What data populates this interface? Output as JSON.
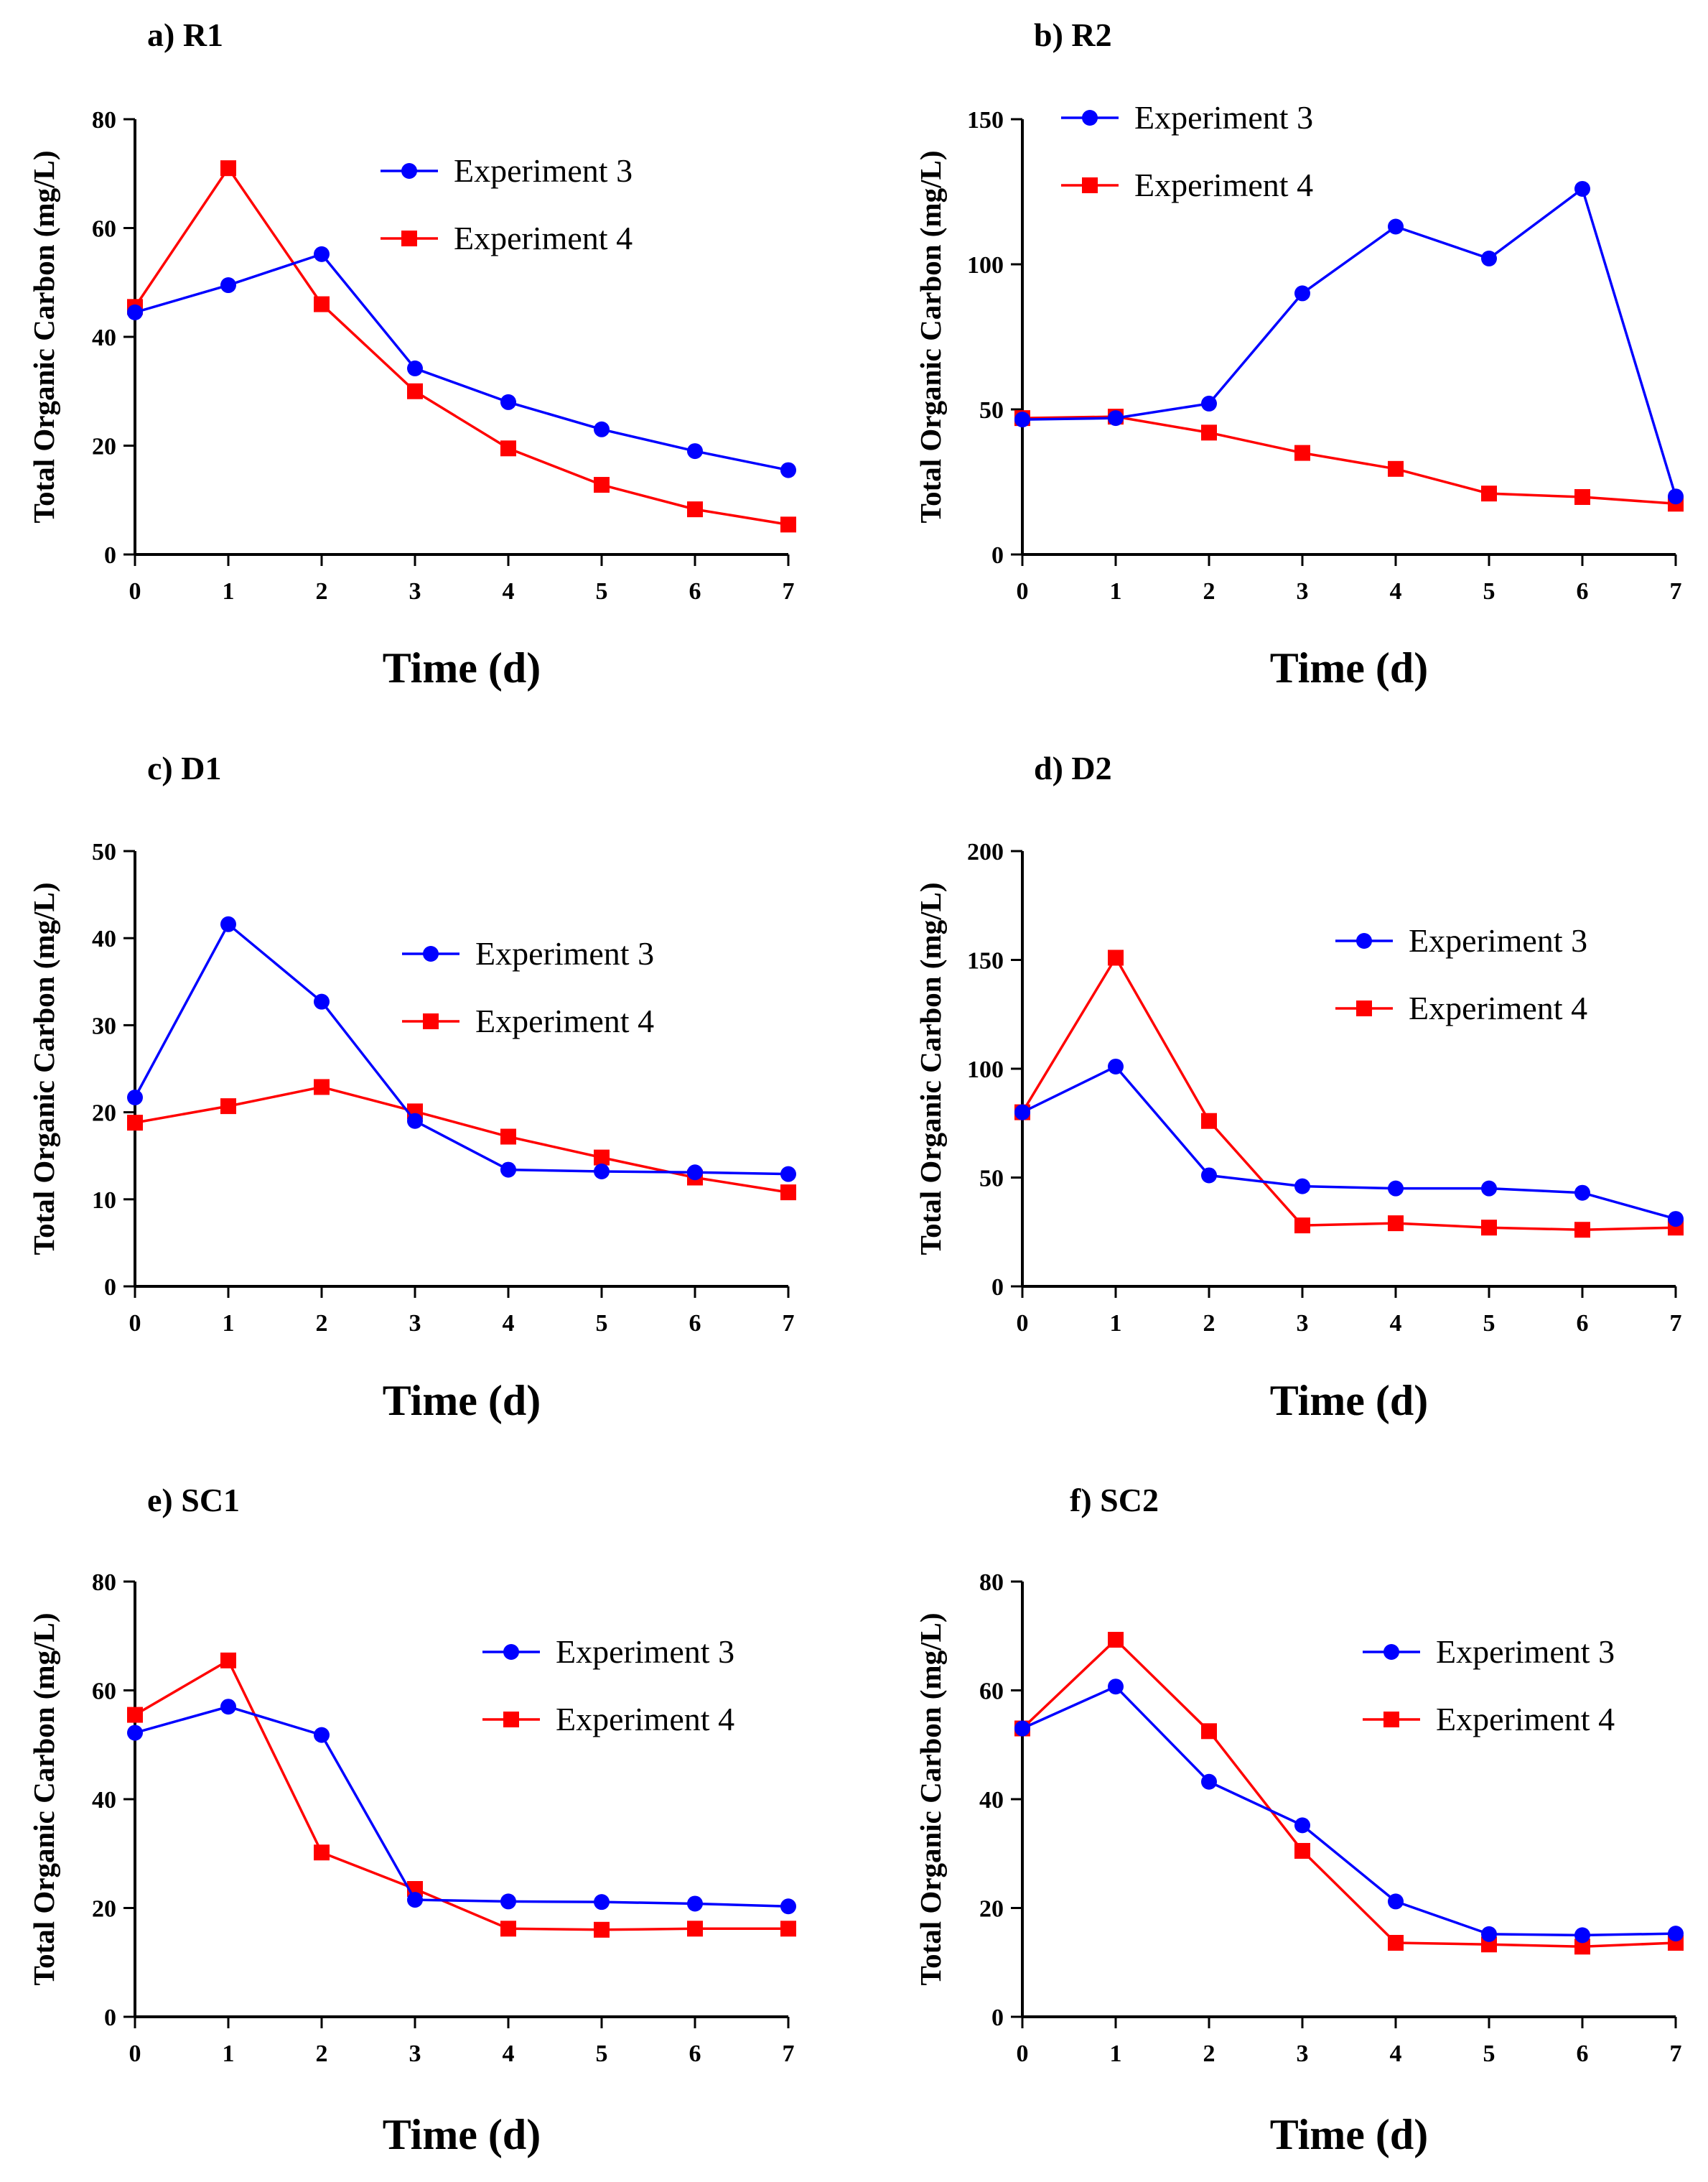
{
  "figure": {
    "colors": {
      "experiment_3": "#0000ff",
      "experiment_4": "#ff0000",
      "axis": "#000000"
    },
    "markers": {
      "experiment_3": "circle",
      "experiment_4": "square"
    }
  },
  "chart_data": [
    {
      "id": "R1",
      "type": "line",
      "title": "a) R1",
      "xlabel": "Time (d)",
      "ylabel": "Total Organic Carbon (mg/L)",
      "x": [
        0,
        1,
        2,
        3,
        4,
        5,
        6,
        7
      ],
      "xlim": [
        0,
        7
      ],
      "ylim": [
        0,
        80
      ],
      "yticks": [
        0,
        20,
        40,
        60,
        80
      ],
      "legend_position": "top-right",
      "series": [
        {
          "name": "Experiment 3",
          "values": [
            44.5,
            49.5,
            55.2,
            34.2,
            28.0,
            23.0,
            19.0,
            15.5
          ]
        },
        {
          "name": "Experiment 4",
          "values": [
            45.5,
            71.0,
            46.0,
            30.0,
            19.5,
            12.8,
            8.3,
            5.5
          ]
        }
      ]
    },
    {
      "id": "R2",
      "type": "line",
      "title": "b) R2",
      "xlabel": "Time (d)",
      "ylabel": "Total Organic Carbon (mg/L)",
      "x": [
        0,
        1,
        2,
        3,
        4,
        5,
        6,
        7
      ],
      "xlim": [
        0,
        7
      ],
      "ylim": [
        0,
        150
      ],
      "yticks": [
        0,
        50,
        100,
        150
      ],
      "legend_position": "top-center",
      "series": [
        {
          "name": "Experiment 3",
          "values": [
            46.5,
            47.0,
            52.0,
            90.0,
            113.0,
            102.0,
            126.0,
            20.0
          ]
        },
        {
          "name": "Experiment 4",
          "values": [
            47.0,
            47.5,
            42.0,
            35.0,
            29.5,
            21.0,
            19.8,
            17.5
          ]
        }
      ]
    },
    {
      "id": "D1",
      "type": "line",
      "title": "c) D1",
      "xlabel": "Time (d)",
      "ylabel": "Total Organic Carbon (mg/L)",
      "x": [
        0,
        1,
        2,
        3,
        4,
        5,
        6,
        7
      ],
      "xlim": [
        0,
        7
      ],
      "ylim": [
        0,
        50
      ],
      "yticks": [
        0,
        10,
        20,
        30,
        40,
        50
      ],
      "legend_position": "center-right",
      "series": [
        {
          "name": "Experiment 3",
          "values": [
            21.7,
            41.6,
            32.7,
            19.0,
            13.4,
            13.2,
            13.1,
            12.9
          ]
        },
        {
          "name": "Experiment 4",
          "values": [
            18.8,
            20.7,
            22.9,
            20.1,
            17.2,
            14.8,
            12.5,
            10.8
          ]
        }
      ]
    },
    {
      "id": "D2",
      "type": "line",
      "title": "d) D2",
      "xlabel": "Time (d)",
      "ylabel": "Total Organic Carbon (mg/L)",
      "x": [
        0,
        1,
        2,
        3,
        4,
        5,
        6,
        7
      ],
      "xlim": [
        0,
        7
      ],
      "ylim": [
        0,
        200
      ],
      "yticks": [
        0,
        50,
        100,
        150,
        200
      ],
      "legend_position": "top-right",
      "series": [
        {
          "name": "Experiment 3",
          "values": [
            80.0,
            101.0,
            51.0,
            46.0,
            45.0,
            45.0,
            43.0,
            31.0
          ]
        },
        {
          "name": "Experiment 4",
          "values": [
            80.0,
            151.0,
            76.0,
            28.0,
            29.0,
            27.0,
            26.0,
            27.0
          ]
        }
      ]
    },
    {
      "id": "SC1",
      "type": "line",
      "title": "e) SC1",
      "xlabel": "Time (d)",
      "ylabel": "Total Organic Carbon (mg/L)",
      "x": [
        0,
        1,
        2,
        3,
        4,
        5,
        6,
        7
      ],
      "xlim": [
        0,
        7
      ],
      "ylim": [
        0,
        80
      ],
      "yticks": [
        0,
        20,
        40,
        60,
        80
      ],
      "legend_position": "top-right",
      "series": [
        {
          "name": "Experiment 3",
          "values": [
            52.2,
            57.0,
            51.8,
            21.5,
            21.2,
            21.1,
            20.8,
            20.3
          ]
        },
        {
          "name": "Experiment 4",
          "values": [
            55.5,
            65.5,
            30.2,
            23.5,
            16.2,
            16.0,
            16.2,
            16.2
          ]
        }
      ]
    },
    {
      "id": "SC2",
      "type": "line",
      "title": "f) SC2",
      "xlabel": "Time (d)",
      "ylabel": "Total Organic Carbon (mg/L)",
      "x": [
        0,
        1,
        2,
        3,
        4,
        5,
        6,
        7
      ],
      "xlim": [
        0,
        7
      ],
      "ylim": [
        0,
        80
      ],
      "yticks": [
        0,
        20,
        40,
        60,
        80
      ],
      "legend_position": "top-right",
      "series": [
        {
          "name": "Experiment 3",
          "values": [
            53.0,
            60.7,
            43.2,
            35.2,
            21.2,
            15.2,
            15.0,
            15.3
          ]
        },
        {
          "name": "Experiment 4",
          "values": [
            53.0,
            69.3,
            52.5,
            30.5,
            13.6,
            13.3,
            12.9,
            13.6
          ]
        }
      ]
    }
  ]
}
